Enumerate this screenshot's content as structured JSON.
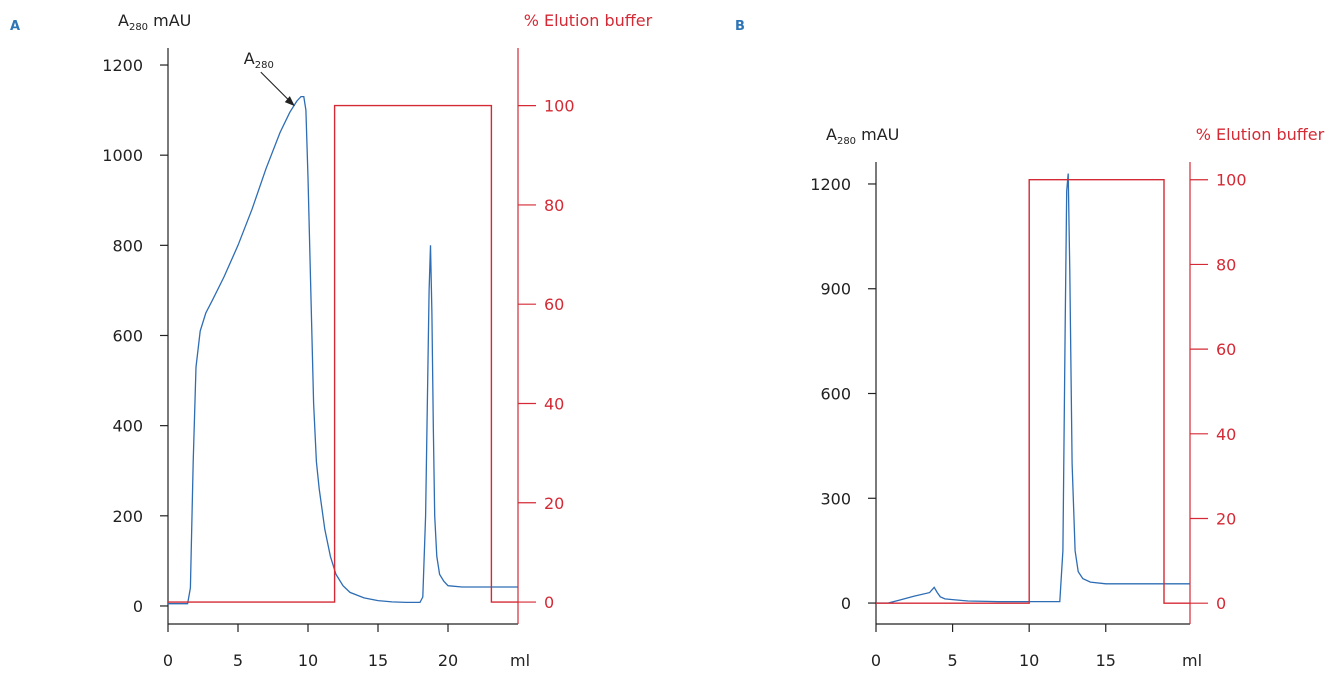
{
  "chart_data": [
    {
      "panel_label": "A",
      "type": "line",
      "ylabel_main": "A",
      "ylabel_sub": "280",
      "ylabel_unit": " mAU",
      "y2label": "% Elution buffer",
      "xlabel": "ml",
      "xlim": [
        0,
        25
      ],
      "ylim": [
        -40,
        1220
      ],
      "y2lim": [
        -4.42,
        110
      ],
      "x_ticks": [
        "0",
        "5",
        "10",
        "15",
        "20"
      ],
      "y_ticks": [
        "0",
        "200",
        "400",
        "600",
        "800",
        "1000",
        "1200"
      ],
      "y2_ticks": [
        "0",
        "20",
        "40",
        "60",
        "80",
        "100"
      ],
      "annotation": {
        "main": "A",
        "sub": "280",
        "x": 9.2,
        "y": 1100
      },
      "series": [
        {
          "axis": "left",
          "color": "#2e6db4",
          "x": [
            0,
            1.4,
            1.6,
            1.8,
            2.0,
            2.3,
            2.7,
            3.2,
            4,
            5,
            6,
            7,
            8,
            8.7,
            9.2,
            9.5,
            9.7,
            9.85,
            10.0,
            10.2,
            10.4,
            10.6,
            10.8,
            11.2,
            11.6,
            12,
            12.5,
            13,
            14,
            15,
            16,
            17,
            18,
            18.2,
            18.4,
            18.55,
            18.65,
            18.75,
            18.85,
            18.95,
            19.05,
            19.2,
            19.4,
            19.7,
            20,
            21,
            22,
            23,
            24,
            25
          ],
          "y": [
            5,
            5,
            40,
            320,
            530,
            610,
            650,
            680,
            730,
            800,
            880,
            970,
            1050,
            1095,
            1120,
            1130,
            1130,
            1100,
            950,
            700,
            450,
            320,
            260,
            170,
            110,
            70,
            45,
            30,
            18,
            12,
            9,
            8,
            8,
            20,
            200,
            500,
            700,
            800,
            650,
            400,
            200,
            110,
            70,
            55,
            45,
            42,
            42,
            42,
            42,
            42
          ]
        },
        {
          "axis": "right",
          "color": "#d42a35",
          "x": [
            0,
            11.9,
            11.9,
            23.1,
            23.1,
            25
          ],
          "y": [
            0,
            0,
            100,
            100,
            0,
            0
          ]
        }
      ]
    },
    {
      "panel_label": "B",
      "type": "line",
      "ylabel_main": "A",
      "ylabel_sub": "280",
      "ylabel_unit": " mAU",
      "y2label": "% Elution buffer",
      "xlabel": "ml",
      "xlim": [
        0,
        20.5
      ],
      "ylim": [
        -60,
        1240
      ],
      "y2lim": [
        -4.92,
        102.3
      ],
      "x_ticks": [
        "0",
        "5",
        "10",
        "15"
      ],
      "y_ticks": [
        "0",
        "300",
        "600",
        "900",
        "1200"
      ],
      "y2_ticks": [
        "0",
        "20",
        "40",
        "60",
        "80",
        "100"
      ],
      "series": [
        {
          "axis": "left",
          "color": "#2e6db4",
          "x": [
            0,
            0.8,
            1.5,
            2.5,
            3.5,
            3.8,
            4.0,
            4.2,
            4.5,
            5,
            6,
            8,
            10,
            12,
            12.2,
            12.35,
            12.45,
            12.55,
            12.65,
            12.8,
            13.0,
            13.2,
            13.5,
            14,
            15,
            16,
            18,
            20.5
          ],
          "y": [
            0,
            0,
            8,
            20,
            30,
            45,
            30,
            18,
            12,
            10,
            6,
            4,
            4,
            4,
            150,
            800,
            1180,
            1230,
            950,
            400,
            150,
            90,
            70,
            60,
            55,
            55,
            55,
            55
          ]
        },
        {
          "axis": "right",
          "color": "#d42a35",
          "x": [
            0,
            10,
            10,
            18.8,
            18.8,
            20.5
          ],
          "y": [
            0,
            0,
            100,
            100,
            0,
            0
          ]
        }
      ]
    }
  ]
}
